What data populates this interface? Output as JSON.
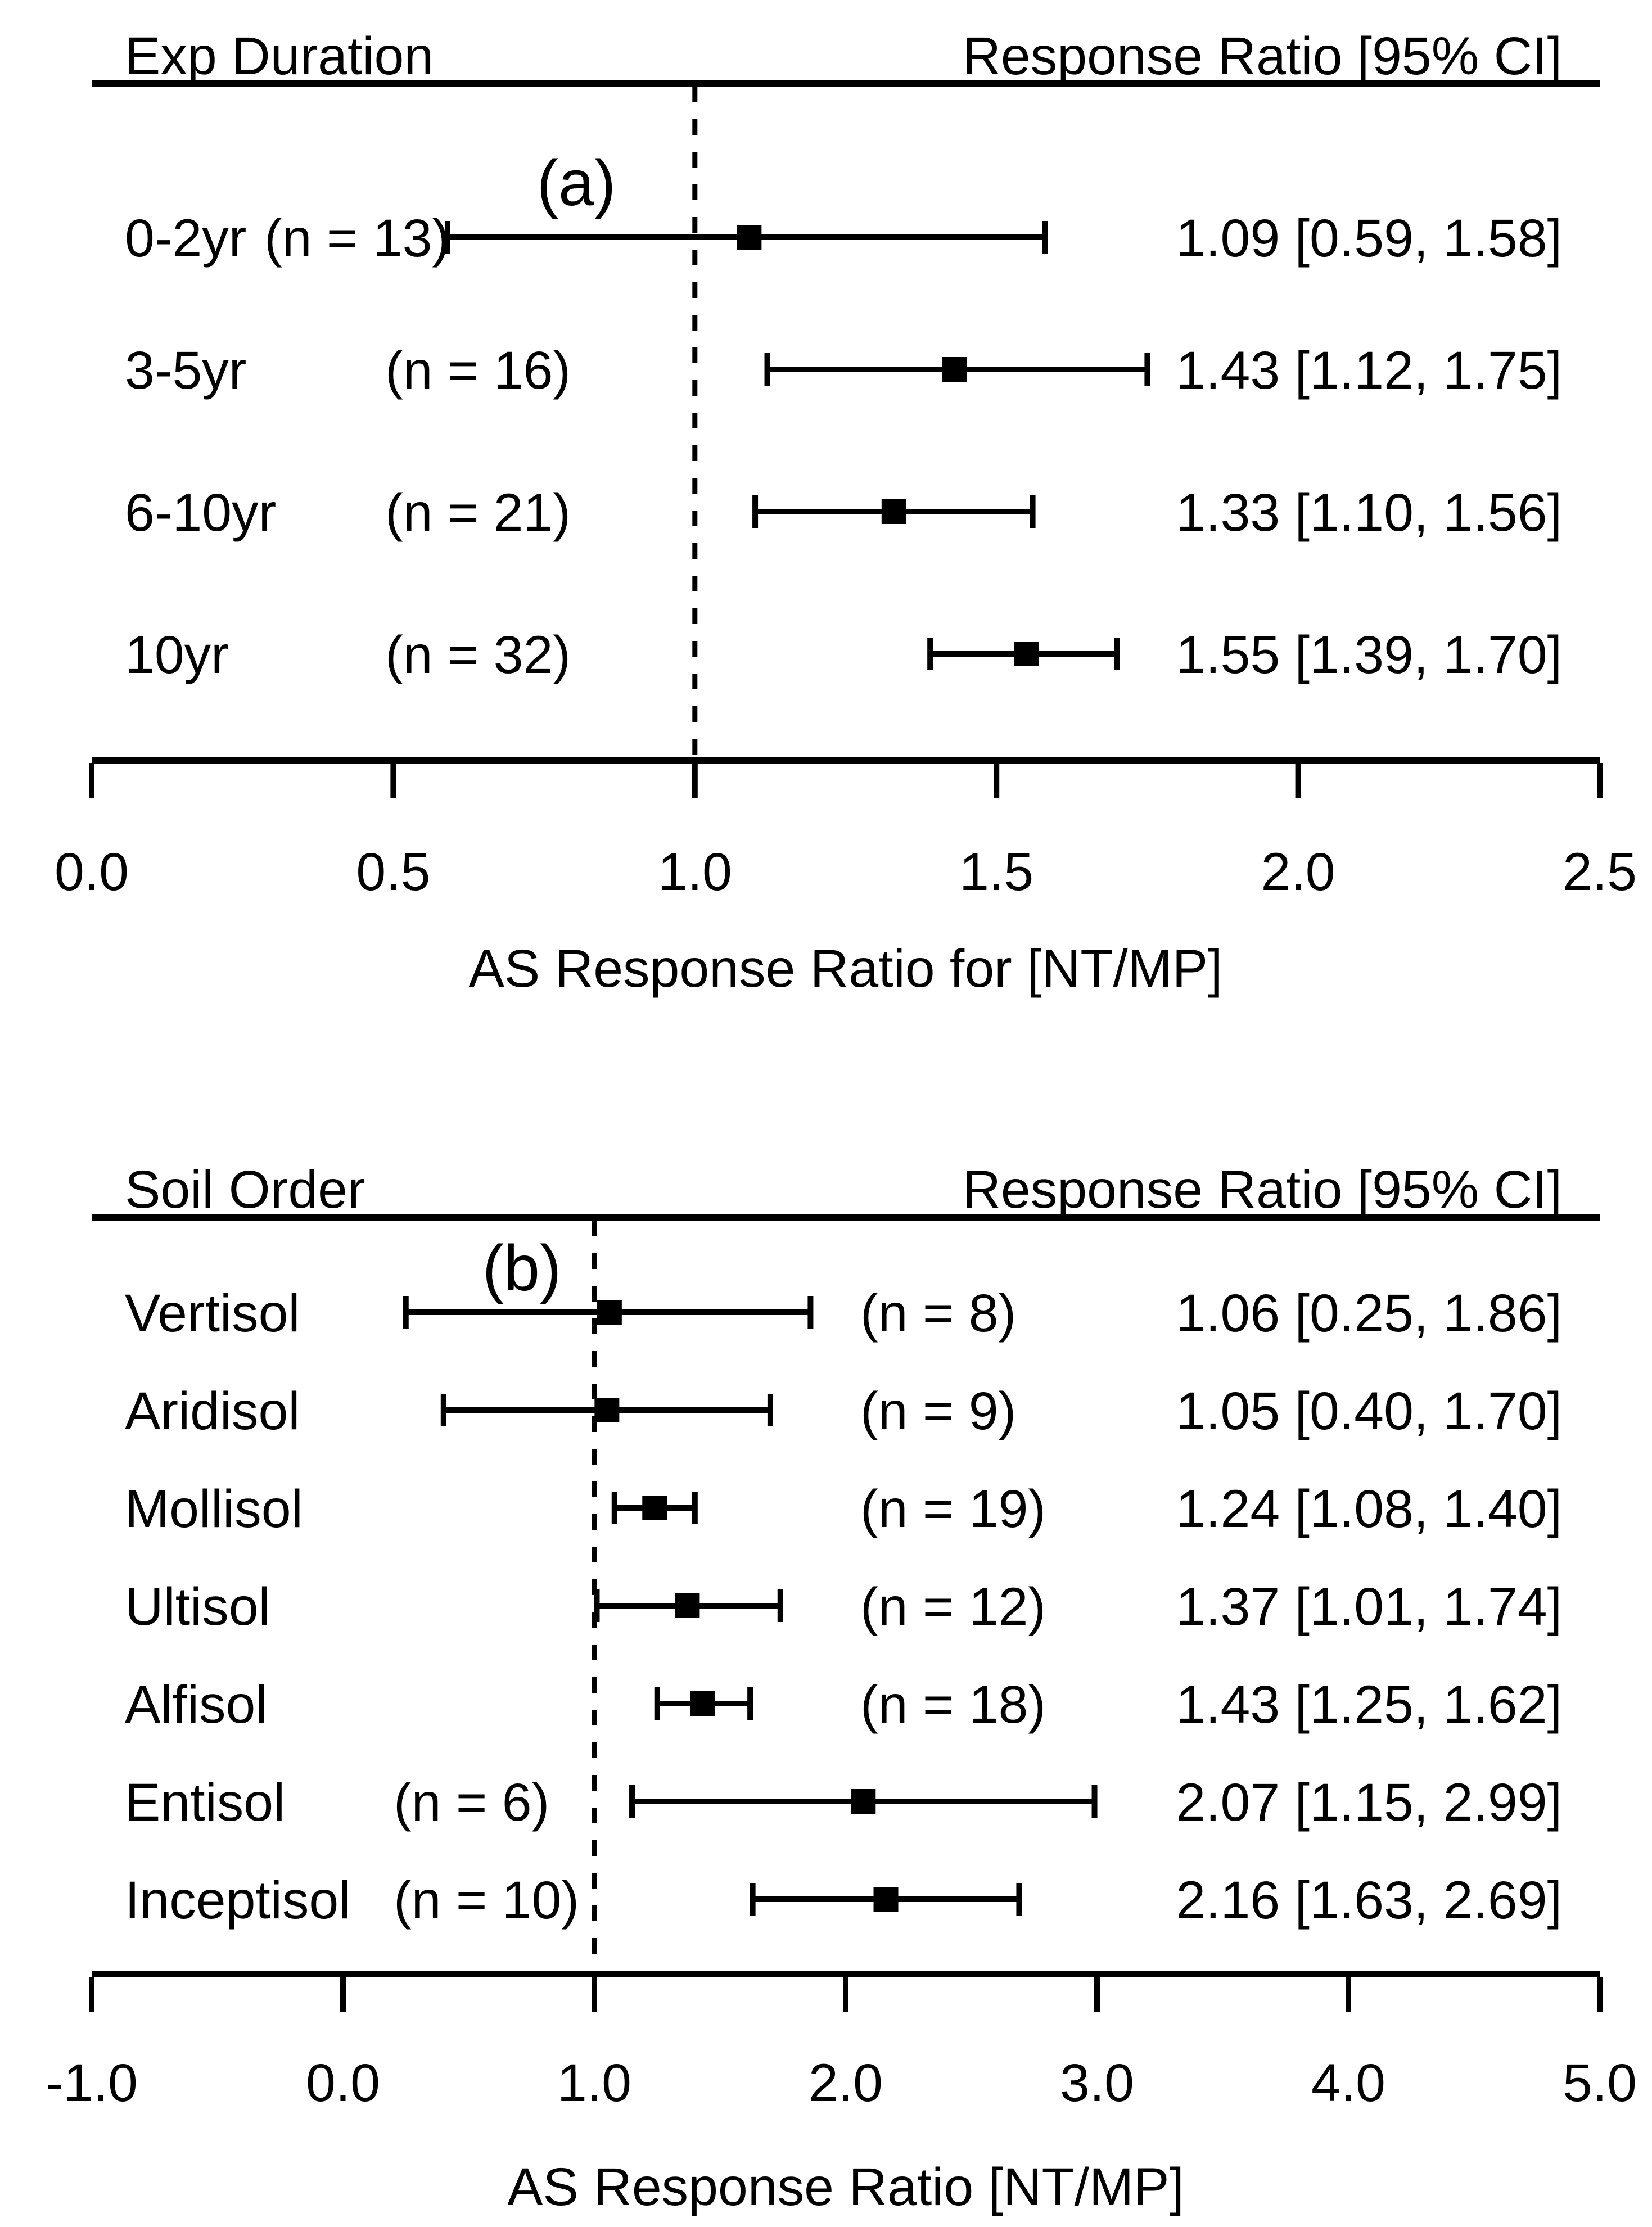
{
  "figure": {
    "background": "#ffffff",
    "foreground": "#000000"
  },
  "chart_data": [
    {
      "type": "forest",
      "panel_label": "(a)",
      "header_left": "Exp Duration",
      "header_right": "Response Ratio [95% CI]",
      "xlabel": "AS Response Ratio for [NT/MP]",
      "xlim": [
        0.0,
        2.5
      ],
      "xtick_labels": [
        "0.0",
        "0.5",
        "1.0",
        "1.5",
        "2.0",
        "2.5"
      ],
      "reference_line": 1.0,
      "rows": [
        {
          "label": "0-2yr",
          "n_label": "(n = 13)",
          "estimate": 1.09,
          "ci_low": 0.59,
          "ci_high": 1.58,
          "value_text": "1.09 [0.59, 1.58]"
        },
        {
          "label": "3-5yr",
          "n_label": "(n = 16)",
          "estimate": 1.43,
          "ci_low": 1.12,
          "ci_high": 1.75,
          "value_text": "1.43 [1.12, 1.75]"
        },
        {
          "label": "6-10yr",
          "n_label": "(n = 21)",
          "estimate": 1.33,
          "ci_low": 1.1,
          "ci_high": 1.56,
          "value_text": "1.33 [1.10, 1.56]"
        },
        {
          "label": "10yr",
          "n_label": "(n = 32)",
          "estimate": 1.55,
          "ci_low": 1.39,
          "ci_high": 1.7,
          "value_text": "1.55 [1.39, 1.70]"
        }
      ]
    },
    {
      "type": "forest",
      "panel_label": "(b)",
      "header_left": "Soil Order",
      "header_right": "Response Ratio [95% CI]",
      "xlabel": "AS Response Ratio [NT/MP]",
      "xlim": [
        -1.0,
        5.0
      ],
      "xtick_labels": [
        "-1.0",
        "0.0",
        "1.0",
        "2.0",
        "3.0",
        "4.0",
        "5.0"
      ],
      "reference_line": 1.0,
      "rows": [
        {
          "label": "Vertisol",
          "n_label": "(n = 8)",
          "estimate": 1.06,
          "ci_low": 0.25,
          "ci_high": 1.86,
          "value_text": "1.06 [0.25, 1.86]"
        },
        {
          "label": "Aridisol",
          "n_label": "(n = 9)",
          "estimate": 1.05,
          "ci_low": 0.4,
          "ci_high": 1.7,
          "value_text": "1.05 [0.40, 1.70]"
        },
        {
          "label": "Mollisol",
          "n_label": "(n = 19)",
          "estimate": 1.24,
          "ci_low": 1.08,
          "ci_high": 1.4,
          "value_text": "1.24 [1.08, 1.40]"
        },
        {
          "label": "Ultisol",
          "n_label": "(n = 12)",
          "estimate": 1.37,
          "ci_low": 1.01,
          "ci_high": 1.74,
          "value_text": "1.37 [1.01, 1.74]"
        },
        {
          "label": "Alfisol",
          "n_label": "(n = 18)",
          "estimate": 1.43,
          "ci_low": 1.25,
          "ci_high": 1.62,
          "value_text": "1.43 [1.25, 1.62]"
        },
        {
          "label": "Entisol",
          "n_label": "(n = 6)",
          "estimate": 2.07,
          "ci_low": 1.15,
          "ci_high": 2.99,
          "value_text": "2.07 [1.15, 2.99]"
        },
        {
          "label": "Inceptisol",
          "n_label": "(n = 10)",
          "estimate": 2.16,
          "ci_low": 1.63,
          "ci_high": 2.69,
          "value_text": "2.16 [1.63, 2.69]"
        }
      ]
    }
  ]
}
